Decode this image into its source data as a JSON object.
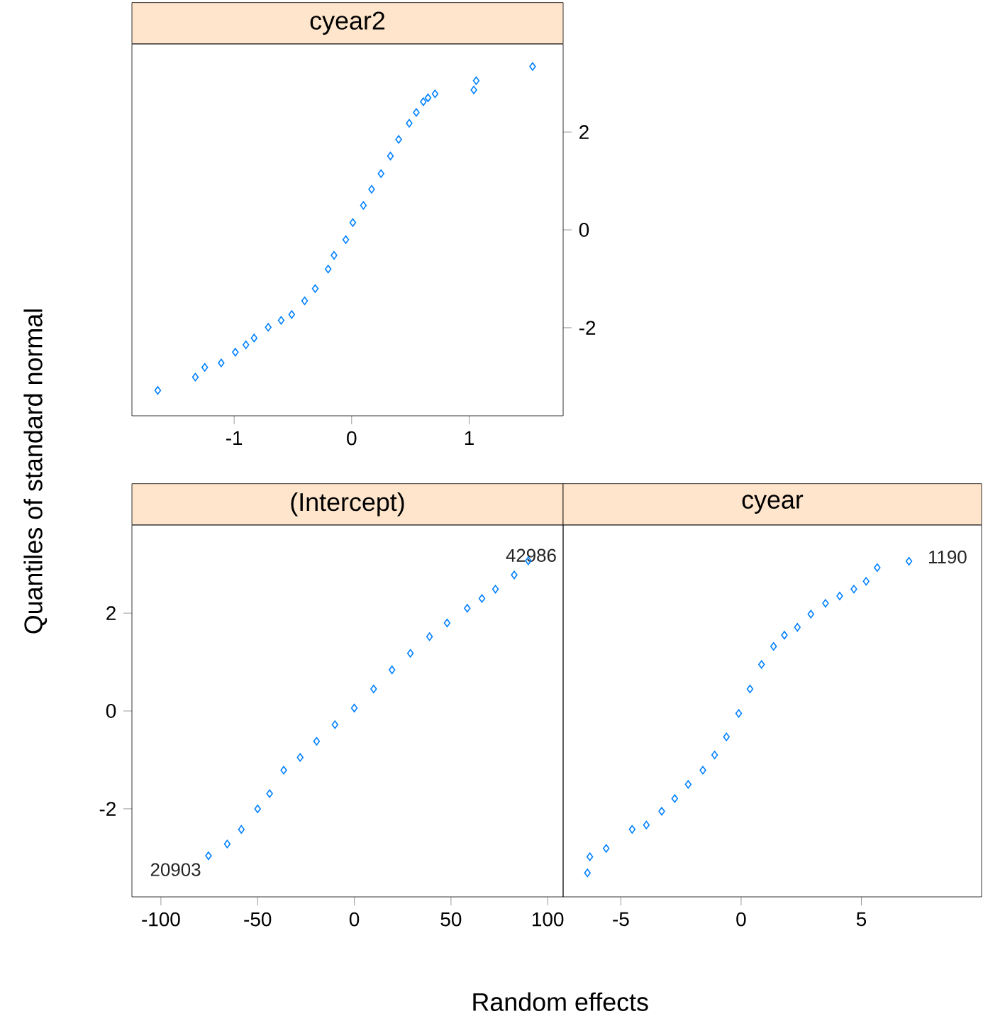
{
  "chart_data": [
    {
      "type": "scatter",
      "title": "cyear2",
      "color": "#0080ff",
      "marker": "diamond",
      "grid": false,
      "xlim": [
        -1.87,
        1.8
      ],
      "ylim": [
        -3.8,
        3.8
      ],
      "xticks": [
        -1,
        0,
        1
      ],
      "yticks": [
        -2,
        0,
        2
      ],
      "x": [
        -1.65,
        -1.33,
        -1.25,
        -1.11,
        -0.99,
        -0.9,
        -0.83,
        -0.71,
        -0.6,
        -0.51,
        -0.4,
        -0.31,
        -0.2,
        -0.15,
        -0.05,
        0.01,
        0.1,
        0.17,
        0.25,
        0.33,
        0.4,
        0.49,
        0.55,
        0.61,
        0.65,
        0.71,
        1.04,
        1.06,
        1.54
      ],
      "values": [
        -3.28,
        -3.01,
        -2.81,
        -2.72,
        -2.5,
        -2.35,
        -2.21,
        -1.99,
        -1.85,
        -1.73,
        -1.45,
        -1.2,
        -0.8,
        -0.52,
        -0.2,
        0.15,
        0.5,
        0.83,
        1.15,
        1.51,
        1.85,
        2.18,
        2.4,
        2.62,
        2.7,
        2.78,
        2.86,
        3.05,
        3.34
      ]
    },
    {
      "type": "scatter",
      "title": "(Intercept)",
      "xlabel": "Random effects",
      "ylabel": "Quantiles of standard normal",
      "color": "#0080ff",
      "marker": "diamond",
      "grid": false,
      "xlim": [
        -115,
        108
      ],
      "ylim": [
        -3.8,
        3.8
      ],
      "xticks": [
        -100,
        -50,
        0,
        50,
        100
      ],
      "yticks": [
        -2,
        0,
        2
      ],
      "x": [
        -75.4,
        -65.7,
        -58.4,
        -50.0,
        -43.8,
        -36.5,
        -28.0,
        -19.5,
        -10.0,
        0,
        10.0,
        19.5,
        29.0,
        38.9,
        48.0,
        58.4,
        66.0,
        73.0,
        82.7,
        90.0
      ],
      "values": [
        -2.96,
        -2.72,
        -2.42,
        -2.0,
        -1.69,
        -1.21,
        -0.95,
        -0.62,
        -0.28,
        0.06,
        0.45,
        0.84,
        1.18,
        1.52,
        1.8,
        2.1,
        2.3,
        2.49,
        2.78,
        3.07
      ],
      "annotations": [
        {
          "text": "20903",
          "x": -75.4,
          "y": -2.96
        },
        {
          "text": "42986",
          "x": 90.0,
          "y": 3.07
        }
      ]
    },
    {
      "type": "scatter",
      "title": "cyear",
      "color": "#0080ff",
      "marker": "diamond",
      "grid": false,
      "tick_labels": "x",
      "xlim": [
        -7.4,
        10
      ],
      "ylim": [
        -3.8,
        3.8
      ],
      "xticks": [
        -5,
        0,
        5
      ],
      "yticks": [
        -2,
        0,
        2
      ],
      "x": [
        -6.39,
        -6.29,
        -5.61,
        -4.53,
        -3.94,
        -3.3,
        -2.76,
        -2.2,
        -1.59,
        -1.1,
        -0.61,
        -0.1,
        0.37,
        0.85,
        1.35,
        1.8,
        2.34,
        2.9,
        3.51,
        4.1,
        4.69,
        5.2,
        5.66,
        6.98
      ],
      "values": [
        -3.31,
        -2.98,
        -2.81,
        -2.42,
        -2.33,
        -2.05,
        -1.79,
        -1.5,
        -1.21,
        -0.9,
        -0.53,
        -0.05,
        0.45,
        0.95,
        1.32,
        1.55,
        1.71,
        1.98,
        2.2,
        2.35,
        2.49,
        2.65,
        2.93,
        3.06
      ],
      "annotations": [
        {
          "text": "1190",
          "x": 6.98,
          "y": 3.06
        }
      ]
    }
  ]
}
